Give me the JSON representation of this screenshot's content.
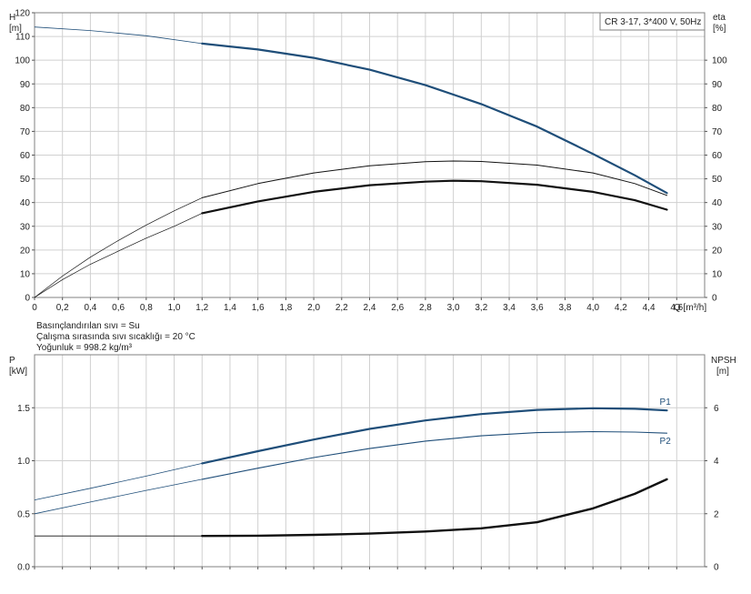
{
  "chart_data": [
    {
      "type": "line",
      "title_box": "CR 3-17, 3*400 V, 50Hz",
      "left_axis": {
        "label_line1": "H",
        "label_line2": "[m]",
        "ylim": [
          0,
          120
        ],
        "ticks": [
          0,
          10,
          20,
          30,
          40,
          50,
          60,
          70,
          80,
          90,
          100,
          110,
          120
        ]
      },
      "right_axis": {
        "label_line1": "eta",
        "label_line2": "[%]",
        "ylim": [
          0,
          120
        ],
        "ticks": [
          0,
          10,
          20,
          30,
          40,
          50,
          60,
          70,
          80,
          90,
          100
        ]
      },
      "x_axis": {
        "label": "Q [m³/h]",
        "xlim": [
          0,
          4.8
        ],
        "ticks": [
          "0",
          "0,2",
          "0,4",
          "0,6",
          "0,8",
          "1,0",
          "1,2",
          "1,4",
          "1,6",
          "1,8",
          "2,0",
          "2,2",
          "2,4",
          "2,6",
          "2,8",
          "3,0",
          "3,2",
          "3,4",
          "3,6",
          "3,8",
          "4,0",
          "4,2",
          "4,4",
          "4,6"
        ]
      },
      "grid": true,
      "series": [
        {
          "id": "H",
          "axis": "left",
          "color": "#1f4e79",
          "width_thin": 0.8,
          "width_bold": 2.2,
          "bold_from": 1.2,
          "points": [
            [
              0,
              114
            ],
            [
              0.4,
              112.5
            ],
            [
              0.8,
              110.3
            ],
            [
              1.2,
              107
            ],
            [
              1.6,
              104.5
            ],
            [
              2.0,
              101
            ],
            [
              2.4,
              96
            ],
            [
              2.8,
              89.5
            ],
            [
              3.2,
              81.5
            ],
            [
              3.6,
              72
            ],
            [
              4.0,
              60.5
            ],
            [
              4.3,
              51.5
            ],
            [
              4.53,
              44
            ]
          ]
        },
        {
          "id": "eta_total",
          "axis": "right",
          "color": "#111111",
          "width_thin": 0.7,
          "width_bold": 2.2,
          "bold_from": 1.2,
          "points": [
            [
              0,
              0
            ],
            [
              0.2,
              7.5
            ],
            [
              0.4,
              14
            ],
            [
              0.6,
              19.5
            ],
            [
              0.8,
              25
            ],
            [
              1.0,
              30
            ],
            [
              1.2,
              35.5
            ],
            [
              1.6,
              40.5
            ],
            [
              2.0,
              44.5
            ],
            [
              2.4,
              47.3
            ],
            [
              2.8,
              48.8
            ],
            [
              3.0,
              49.2
            ],
            [
              3.2,
              49
            ],
            [
              3.6,
              47.5
            ],
            [
              4.0,
              44.5
            ],
            [
              4.3,
              41
            ],
            [
              4.53,
              37
            ]
          ]
        },
        {
          "id": "eta_pump",
          "axis": "right",
          "color": "#111111",
          "width_thin": 0.7,
          "width_bold": 1.0,
          "bold_from": 1.2,
          "points": [
            [
              0,
              0
            ],
            [
              0.2,
              9
            ],
            [
              0.4,
              17
            ],
            [
              0.6,
              24
            ],
            [
              0.8,
              30.5
            ],
            [
              1.0,
              36.5
            ],
            [
              1.2,
              42
            ],
            [
              1.6,
              48
            ],
            [
              2.0,
              52.5
            ],
            [
              2.4,
              55.5
            ],
            [
              2.8,
              57.2
            ],
            [
              3.0,
              57.5
            ],
            [
              3.2,
              57.3
            ],
            [
              3.6,
              55.8
            ],
            [
              4.0,
              52.5
            ],
            [
              4.3,
              48
            ],
            [
              4.53,
              43
            ]
          ]
        }
      ]
    },
    {
      "type": "line",
      "left_axis": {
        "label_line1": "P",
        "label_line2": "[kW]",
        "ylim": [
          0,
          2
        ],
        "ticks": [
          "0.0",
          "0.5",
          "1.0",
          "1.5"
        ],
        "tick_values": [
          0,
          0.5,
          1.0,
          1.5
        ]
      },
      "right_axis": {
        "label_line1": "NPSH",
        "label_line2": "[m]",
        "ylim": [
          0,
          8
        ],
        "ticks": [
          "0",
          "2",
          "4",
          "6"
        ],
        "tick_values": [
          0,
          2,
          4,
          6
        ]
      },
      "x_axis": {
        "xlim": [
          0,
          4.8
        ]
      },
      "grid": true,
      "series": [
        {
          "id": "P1",
          "name": "P1",
          "axis": "left",
          "color": "#1f4e79",
          "width_thin": 0.8,
          "width_bold": 2.2,
          "bold_from": 1.2,
          "points": [
            [
              0,
              0.63
            ],
            [
              0.4,
              0.74
            ],
            [
              0.8,
              0.855
            ],
            [
              1.2,
              0.975
            ],
            [
              1.6,
              1.09
            ],
            [
              2.0,
              1.2
            ],
            [
              2.4,
              1.3
            ],
            [
              2.8,
              1.38
            ],
            [
              3.2,
              1.44
            ],
            [
              3.6,
              1.48
            ],
            [
              4.0,
              1.495
            ],
            [
              4.3,
              1.49
            ],
            [
              4.53,
              1.475
            ]
          ]
        },
        {
          "id": "P2",
          "name": "P2",
          "axis": "left",
          "color": "#1f4e79",
          "width_thin": 0.8,
          "width_bold": 1.1,
          "bold_from": 1.2,
          "points": [
            [
              0,
              0.5
            ],
            [
              0.4,
              0.61
            ],
            [
              0.8,
              0.72
            ],
            [
              1.2,
              0.825
            ],
            [
              1.6,
              0.93
            ],
            [
              2.0,
              1.03
            ],
            [
              2.4,
              1.115
            ],
            [
              2.8,
              1.185
            ],
            [
              3.2,
              1.235
            ],
            [
              3.6,
              1.265
            ],
            [
              4.0,
              1.275
            ],
            [
              4.3,
              1.27
            ],
            [
              4.53,
              1.26
            ]
          ]
        },
        {
          "id": "NPSH",
          "axis": "right",
          "color": "#111111",
          "width_thin": 0.8,
          "width_bold": 2.4,
          "bold_from": 1.2,
          "points": [
            [
              0,
              1.16
            ],
            [
              0.6,
              1.16
            ],
            [
              1.2,
              1.16
            ],
            [
              1.6,
              1.17
            ],
            [
              2.0,
              1.2
            ],
            [
              2.4,
              1.25
            ],
            [
              2.8,
              1.33
            ],
            [
              3.2,
              1.45
            ],
            [
              3.6,
              1.68
            ],
            [
              4.0,
              2.2
            ],
            [
              4.3,
              2.75
            ],
            [
              4.53,
              3.3
            ]
          ]
        }
      ]
    }
  ],
  "fluid_info": {
    "line1": "Basınçlandırılan sıvı = Su",
    "line2": "Çalışma sırasında sıvı sıcaklığı = 20 °C",
    "line3": "Yoğunluk = 998.2 kg/m³"
  }
}
